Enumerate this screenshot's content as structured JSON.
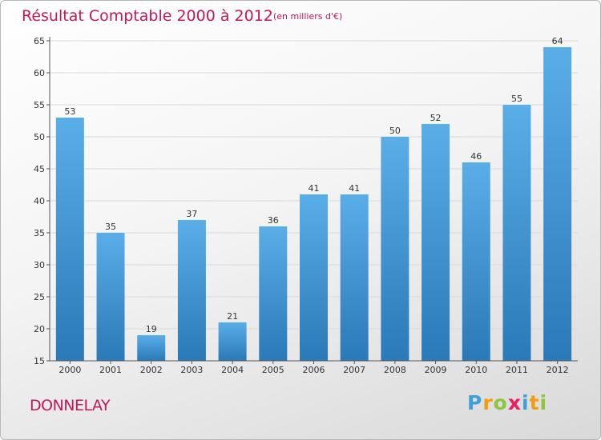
{
  "header": {
    "title": "Résultat Comptable 2000 à 2012",
    "subtitle": "(en milliers d'€)"
  },
  "footer": {
    "commune": "DONNELAY",
    "brand_letters": [
      "P",
      "r",
      "o",
      "x",
      "i",
      "t",
      "i"
    ],
    "brand_colors": [
      "#3f9fd8",
      "#f39c12",
      "#8cc63f",
      "#e91e63",
      "#3f9fd8",
      "#f39c12",
      "#8cc63f"
    ]
  },
  "colors": {
    "bar_top": "#5aaee8",
    "bar_bottom": "#2a79b8",
    "axis": "#555555",
    "grid": "#d9d9d9",
    "text": "#333333"
  },
  "chart_data": {
    "type": "bar",
    "title": "Résultat Comptable 2000 à 2012",
    "xlabel": "",
    "ylabel": "",
    "categories": [
      "2000",
      "2001",
      "2002",
      "2003",
      "2004",
      "2005",
      "2006",
      "2007",
      "2008",
      "2009",
      "2010",
      "2011",
      "2012"
    ],
    "values": [
      53,
      35,
      19,
      37,
      21,
      36,
      41,
      41,
      50,
      52,
      46,
      55,
      64
    ],
    "ylim": [
      15,
      65
    ],
    "yticks": [
      15,
      20,
      25,
      30,
      35,
      40,
      45,
      50,
      55,
      60,
      65
    ],
    "grid": true
  }
}
